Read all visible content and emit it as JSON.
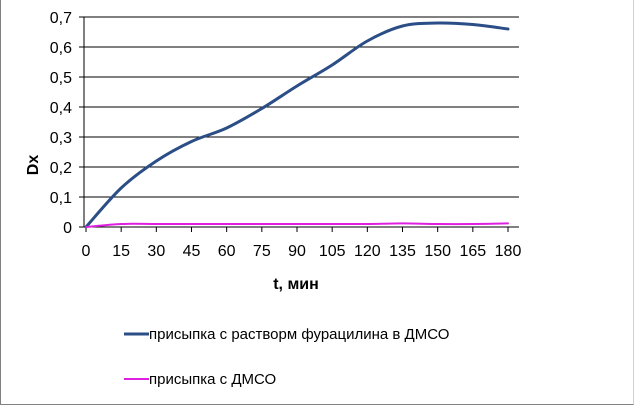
{
  "chart_data": {
    "type": "line",
    "xlabel": "t, мин",
    "ylabel": "Dx",
    "x": [
      0,
      15,
      30,
      45,
      60,
      75,
      90,
      105,
      120,
      135,
      150,
      165,
      180
    ],
    "x_tick_labels": [
      "0",
      "15",
      "30",
      "45",
      "60",
      "75",
      "90",
      "105",
      "120",
      "135",
      "150",
      "165",
      "180"
    ],
    "y_tick_labels": [
      "0",
      "0,1",
      "0,2",
      "0,3",
      "0,4",
      "0,5",
      "0,6",
      "0,7"
    ],
    "ylim": [
      0,
      0.7
    ],
    "grid": "horizontal",
    "legend_position": "bottom",
    "series": [
      {
        "name": "присыпка с растворм фурацилина в ДМСО",
        "color": "#2b4e86",
        "values": [
          0.0,
          0.13,
          0.22,
          0.285,
          0.33,
          0.395,
          0.47,
          0.54,
          0.62,
          0.67,
          0.68,
          0.675,
          0.66
        ]
      },
      {
        "name": "присыпка с ДМСО",
        "color": "#e020e0",
        "values": [
          0.0,
          0.01,
          0.01,
          0.01,
          0.01,
          0.01,
          0.01,
          0.01,
          0.01,
          0.012,
          0.01,
          0.01,
          0.012
        ]
      }
    ]
  }
}
